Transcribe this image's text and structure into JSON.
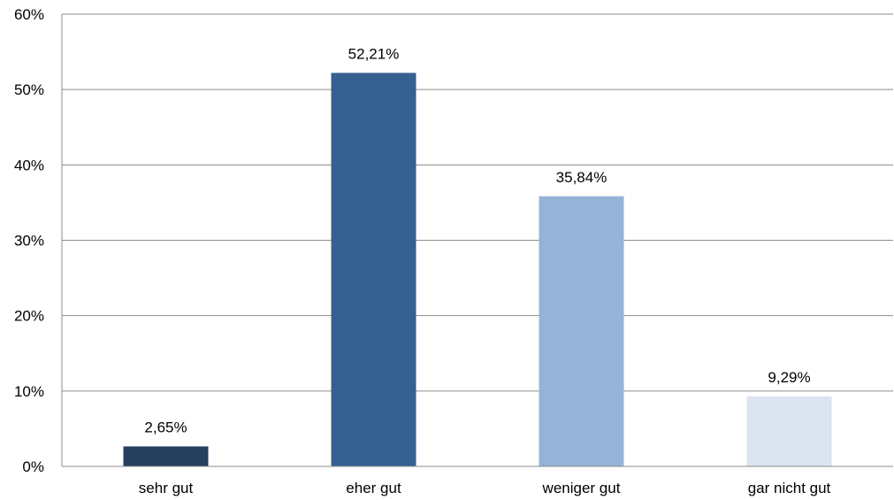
{
  "chart_data": {
    "type": "bar",
    "categories": [
      "sehr gut",
      "eher gut",
      "weniger gut",
      "gar nicht gut"
    ],
    "values": [
      2.65,
      52.21,
      35.84,
      9.29
    ],
    "data_labels": [
      "2,65%",
      "52,21%",
      "35,84%",
      "9,29%"
    ],
    "bar_colors": [
      "#253f5f",
      "#365f92",
      "#95b3d7",
      "#dbe5f1"
    ],
    "ylim": [
      0,
      60
    ],
    "yticks": [
      0,
      10,
      20,
      30,
      40,
      50,
      60
    ],
    "ytick_labels": [
      "0%",
      "10%",
      "20%",
      "30%",
      "40%",
      "50%",
      "60%"
    ],
    "grid": true,
    "legend": "none"
  }
}
